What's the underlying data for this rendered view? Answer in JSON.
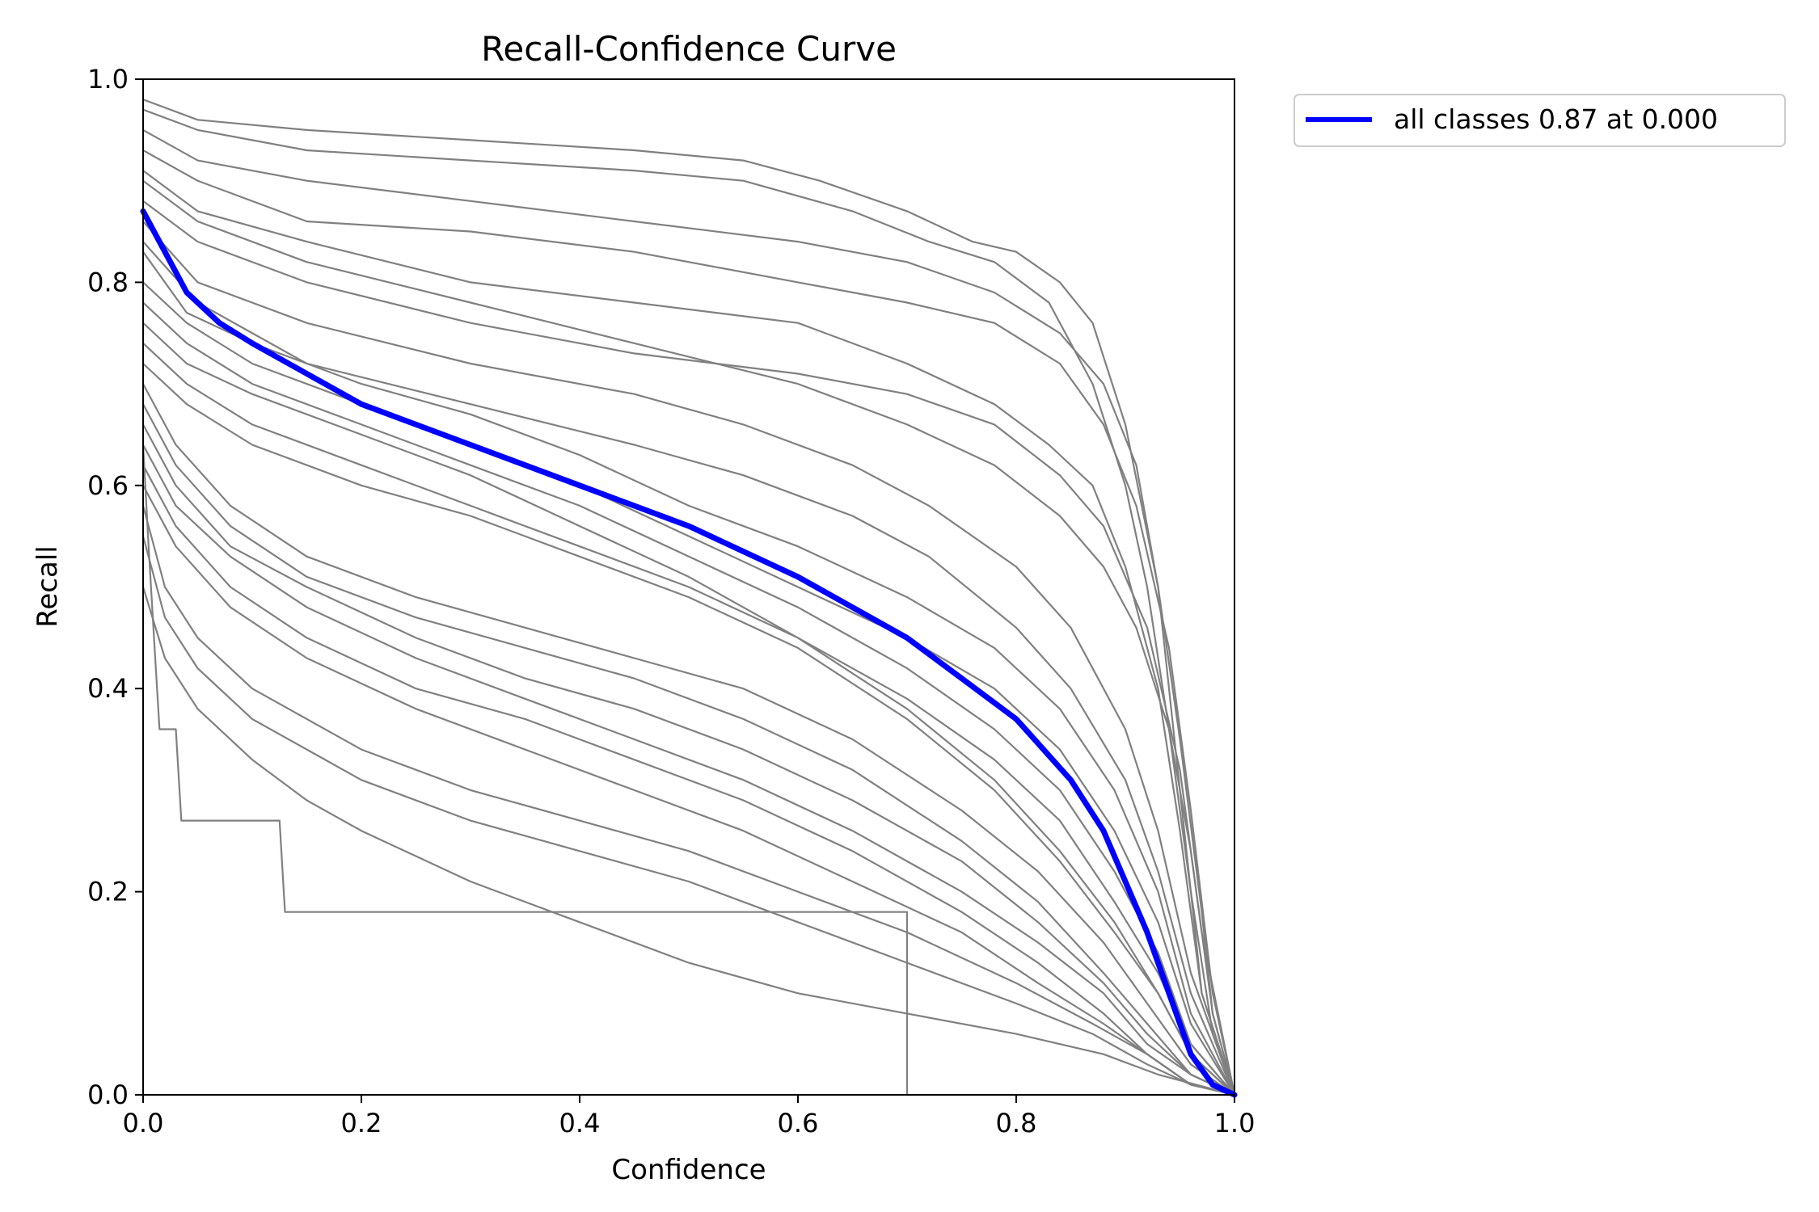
{
  "chart_data": {
    "type": "line",
    "title": "Recall-Confidence Curve",
    "xlabel": "Confidence",
    "ylabel": "Recall",
    "xlim": [
      0.0,
      1.0
    ],
    "ylim": [
      0.0,
      1.0
    ],
    "grid": false,
    "legend_placement": "outside-top-right",
    "x_ticks": [
      "0.0",
      "0.2",
      "0.4",
      "0.6",
      "0.8",
      "1.0"
    ],
    "y_ticks": [
      "0.0",
      "0.2",
      "0.4",
      "0.6",
      "0.8",
      "1.0"
    ],
    "colors": {
      "class_curves": "#808080",
      "all_classes": "#0000ff"
    },
    "class_curves": [
      {
        "x": [
          0.0,
          0.05,
          0.15,
          0.3,
          0.45,
          0.55,
          0.62,
          0.7,
          0.76,
          0.8,
          0.84,
          0.87,
          0.9,
          0.93,
          0.95,
          0.97,
          1.0
        ],
        "y": [
          0.98,
          0.96,
          0.95,
          0.94,
          0.93,
          0.92,
          0.9,
          0.87,
          0.84,
          0.83,
          0.8,
          0.76,
          0.66,
          0.5,
          0.3,
          0.1,
          0.0
        ]
      },
      {
        "x": [
          0.0,
          0.05,
          0.15,
          0.3,
          0.45,
          0.55,
          0.65,
          0.72,
          0.78,
          0.83,
          0.87,
          0.9,
          0.92,
          0.94,
          0.96,
          0.98,
          1.0
        ],
        "y": [
          0.97,
          0.95,
          0.93,
          0.92,
          0.91,
          0.9,
          0.87,
          0.84,
          0.82,
          0.78,
          0.7,
          0.6,
          0.5,
          0.36,
          0.2,
          0.06,
          0.0
        ]
      },
      {
        "x": [
          0.0,
          0.05,
          0.15,
          0.3,
          0.45,
          0.6,
          0.7,
          0.78,
          0.84,
          0.88,
          0.91,
          0.93,
          0.95,
          0.97,
          0.98,
          1.0
        ],
        "y": [
          0.95,
          0.92,
          0.9,
          0.88,
          0.86,
          0.84,
          0.82,
          0.79,
          0.75,
          0.7,
          0.62,
          0.5,
          0.35,
          0.18,
          0.08,
          0.0
        ]
      },
      {
        "x": [
          0.0,
          0.05,
          0.15,
          0.3,
          0.45,
          0.6,
          0.7,
          0.78,
          0.84,
          0.88,
          0.91,
          0.94,
          0.96,
          0.98,
          1.0
        ],
        "y": [
          0.93,
          0.9,
          0.86,
          0.85,
          0.83,
          0.8,
          0.78,
          0.76,
          0.72,
          0.66,
          0.58,
          0.44,
          0.28,
          0.1,
          0.0
        ]
      },
      {
        "x": [
          0.0,
          0.05,
          0.15,
          0.3,
          0.45,
          0.6,
          0.7,
          0.78,
          0.83,
          0.87,
          0.9,
          0.93,
          0.95,
          0.97,
          1.0
        ],
        "y": [
          0.91,
          0.87,
          0.84,
          0.8,
          0.78,
          0.76,
          0.72,
          0.68,
          0.64,
          0.6,
          0.52,
          0.4,
          0.26,
          0.1,
          0.0
        ]
      },
      {
        "x": [
          0.0,
          0.05,
          0.15,
          0.3,
          0.45,
          0.6,
          0.7,
          0.78,
          0.84,
          0.88,
          0.91,
          0.94,
          0.96,
          0.98,
          1.0
        ],
        "y": [
          0.9,
          0.86,
          0.82,
          0.78,
          0.74,
          0.7,
          0.66,
          0.62,
          0.57,
          0.52,
          0.46,
          0.36,
          0.24,
          0.08,
          0.0
        ]
      },
      {
        "x": [
          0.0,
          0.05,
          0.15,
          0.3,
          0.45,
          0.6,
          0.7,
          0.78,
          0.84,
          0.88,
          0.92,
          0.95,
          0.97,
          1.0
        ],
        "y": [
          0.88,
          0.84,
          0.8,
          0.76,
          0.73,
          0.71,
          0.69,
          0.66,
          0.61,
          0.56,
          0.46,
          0.32,
          0.16,
          0.0
        ]
      },
      {
        "x": [
          0.0,
          0.05,
          0.15,
          0.3,
          0.45,
          0.55,
          0.65,
          0.72,
          0.8,
          0.85,
          0.9,
          0.93,
          0.96,
          1.0
        ],
        "y": [
          0.86,
          0.8,
          0.76,
          0.72,
          0.69,
          0.66,
          0.62,
          0.58,
          0.52,
          0.46,
          0.36,
          0.26,
          0.12,
          0.0
        ]
      },
      {
        "x": [
          0.0,
          0.05,
          0.15,
          0.3,
          0.45,
          0.55,
          0.65,
          0.72,
          0.8,
          0.85,
          0.9,
          0.93,
          0.96,
          1.0
        ],
        "y": [
          0.84,
          0.78,
          0.72,
          0.68,
          0.64,
          0.61,
          0.57,
          0.53,
          0.46,
          0.4,
          0.31,
          0.22,
          0.1,
          0.0
        ]
      },
      {
        "x": [
          0.0,
          0.04,
          0.1,
          0.2,
          0.3,
          0.4,
          0.5,
          0.6,
          0.7,
          0.78,
          0.84,
          0.89,
          0.93,
          0.96,
          1.0
        ],
        "y": [
          0.83,
          0.77,
          0.74,
          0.7,
          0.67,
          0.63,
          0.58,
          0.54,
          0.49,
          0.44,
          0.38,
          0.3,
          0.2,
          0.08,
          0.0
        ]
      },
      {
        "x": [
          0.0,
          0.04,
          0.1,
          0.2,
          0.3,
          0.4,
          0.5,
          0.6,
          0.7,
          0.78,
          0.84,
          0.89,
          0.93,
          0.96,
          1.0
        ],
        "y": [
          0.8,
          0.76,
          0.72,
          0.68,
          0.64,
          0.6,
          0.55,
          0.5,
          0.45,
          0.4,
          0.34,
          0.26,
          0.17,
          0.07,
          0.0
        ]
      },
      {
        "x": [
          0.0,
          0.04,
          0.1,
          0.2,
          0.3,
          0.4,
          0.5,
          0.6,
          0.7,
          0.78,
          0.84,
          0.89,
          0.93,
          0.96,
          1.0
        ],
        "y": [
          0.78,
          0.74,
          0.7,
          0.66,
          0.62,
          0.58,
          0.53,
          0.48,
          0.42,
          0.36,
          0.3,
          0.22,
          0.14,
          0.05,
          0.0
        ]
      },
      {
        "x": [
          0.0,
          0.04,
          0.1,
          0.2,
          0.3,
          0.4,
          0.5,
          0.6,
          0.7,
          0.78,
          0.84,
          0.89,
          0.93,
          0.96,
          1.0
        ],
        "y": [
          0.76,
          0.72,
          0.69,
          0.65,
          0.61,
          0.56,
          0.51,
          0.45,
          0.39,
          0.33,
          0.27,
          0.19,
          0.12,
          0.05,
          0.0
        ]
      },
      {
        "x": [
          0.0,
          0.04,
          0.1,
          0.2,
          0.3,
          0.4,
          0.5,
          0.6,
          0.7,
          0.78,
          0.84,
          0.89,
          0.93,
          0.96,
          1.0
        ],
        "y": [
          0.74,
          0.7,
          0.66,
          0.62,
          0.58,
          0.54,
          0.5,
          0.45,
          0.38,
          0.31,
          0.24,
          0.17,
          0.1,
          0.04,
          0.0
        ]
      },
      {
        "x": [
          0.0,
          0.04,
          0.1,
          0.2,
          0.3,
          0.4,
          0.5,
          0.6,
          0.7,
          0.78,
          0.84,
          0.89,
          0.93,
          0.96,
          1.0
        ],
        "y": [
          0.72,
          0.68,
          0.64,
          0.6,
          0.57,
          0.53,
          0.49,
          0.44,
          0.37,
          0.3,
          0.23,
          0.16,
          0.1,
          0.04,
          0.0
        ]
      },
      {
        "x": [
          0.0,
          0.03,
          0.08,
          0.15,
          0.25,
          0.35,
          0.45,
          0.55,
          0.65,
          0.75,
          0.82,
          0.88,
          0.92,
          0.96,
          1.0
        ],
        "y": [
          0.7,
          0.64,
          0.58,
          0.53,
          0.49,
          0.46,
          0.43,
          0.4,
          0.35,
          0.28,
          0.22,
          0.15,
          0.09,
          0.03,
          0.0
        ]
      },
      {
        "x": [
          0.0,
          0.03,
          0.08,
          0.15,
          0.25,
          0.35,
          0.45,
          0.55,
          0.65,
          0.75,
          0.82,
          0.88,
          0.92,
          0.96,
          1.0
        ],
        "y": [
          0.68,
          0.62,
          0.56,
          0.51,
          0.47,
          0.44,
          0.41,
          0.37,
          0.32,
          0.25,
          0.19,
          0.12,
          0.07,
          0.02,
          0.0
        ]
      },
      {
        "x": [
          0.0,
          0.03,
          0.08,
          0.15,
          0.25,
          0.35,
          0.45,
          0.55,
          0.65,
          0.75,
          0.82,
          0.88,
          0.92,
          0.96,
          1.0
        ],
        "y": [
          0.66,
          0.6,
          0.54,
          0.5,
          0.45,
          0.41,
          0.38,
          0.34,
          0.29,
          0.23,
          0.17,
          0.11,
          0.06,
          0.02,
          0.0
        ]
      },
      {
        "x": [
          0.0,
          0.03,
          0.08,
          0.15,
          0.25,
          0.35,
          0.45,
          0.55,
          0.65,
          0.75,
          0.82,
          0.88,
          0.92,
          0.96,
          1.0
        ],
        "y": [
          0.64,
          0.58,
          0.53,
          0.48,
          0.43,
          0.39,
          0.35,
          0.31,
          0.26,
          0.2,
          0.15,
          0.1,
          0.05,
          0.02,
          0.0
        ]
      },
      {
        "x": [
          0.0,
          0.03,
          0.08,
          0.15,
          0.25,
          0.35,
          0.45,
          0.55,
          0.65,
          0.75,
          0.82,
          0.88,
          0.92,
          0.96,
          1.0
        ],
        "y": [
          0.62,
          0.56,
          0.5,
          0.45,
          0.4,
          0.37,
          0.33,
          0.29,
          0.24,
          0.18,
          0.13,
          0.08,
          0.04,
          0.01,
          0.0
        ]
      },
      {
        "x": [
          0.0,
          0.03,
          0.08,
          0.15,
          0.25,
          0.35,
          0.45,
          0.55,
          0.65,
          0.75,
          0.82,
          0.88,
          0.92,
          0.96,
          1.0
        ],
        "y": [
          0.6,
          0.54,
          0.48,
          0.43,
          0.38,
          0.34,
          0.3,
          0.26,
          0.21,
          0.16,
          0.11,
          0.07,
          0.04,
          0.01,
          0.0
        ]
      },
      {
        "x": [
          0.0,
          0.02,
          0.05,
          0.1,
          0.2,
          0.3,
          0.4,
          0.5,
          0.6,
          0.7,
          0.8,
          0.87,
          0.92,
          0.96,
          1.0
        ],
        "y": [
          0.58,
          0.5,
          0.45,
          0.4,
          0.34,
          0.3,
          0.27,
          0.24,
          0.2,
          0.16,
          0.11,
          0.07,
          0.04,
          0.01,
          0.0
        ]
      },
      {
        "x": [
          0.0,
          0.02,
          0.05,
          0.1,
          0.2,
          0.3,
          0.4,
          0.5,
          0.6,
          0.7,
          0.8,
          0.87,
          0.92,
          0.96,
          1.0
        ],
        "y": [
          0.55,
          0.47,
          0.42,
          0.37,
          0.31,
          0.27,
          0.24,
          0.21,
          0.17,
          0.13,
          0.09,
          0.06,
          0.03,
          0.01,
          0.0
        ]
      },
      {
        "x": [
          0.0,
          0.02,
          0.05,
          0.1,
          0.15,
          0.2,
          0.3,
          0.4,
          0.5,
          0.6,
          0.7,
          0.8,
          0.88,
          0.93,
          1.0
        ],
        "y": [
          0.5,
          0.43,
          0.38,
          0.33,
          0.29,
          0.26,
          0.21,
          0.17,
          0.13,
          0.1,
          0.08,
          0.06,
          0.04,
          0.02,
          0.0
        ]
      },
      {
        "x": [
          0.0,
          0.005,
          0.01,
          0.015,
          0.03,
          0.035,
          0.125,
          0.13,
          0.7,
          0.7,
          1.0
        ],
        "y": [
          0.64,
          0.54,
          0.45,
          0.36,
          0.36,
          0.27,
          0.27,
          0.18,
          0.18,
          0.0,
          0.0
        ]
      }
    ],
    "series": [
      {
        "name": "all classes 0.87 at 0.000",
        "x": [
          0.0,
          0.02,
          0.04,
          0.07,
          0.1,
          0.15,
          0.2,
          0.3,
          0.4,
          0.5,
          0.6,
          0.7,
          0.75,
          0.8,
          0.85,
          0.88,
          0.9,
          0.92,
          0.94,
          0.96,
          0.98,
          1.0
        ],
        "y": [
          0.87,
          0.83,
          0.79,
          0.76,
          0.74,
          0.71,
          0.68,
          0.64,
          0.6,
          0.56,
          0.51,
          0.45,
          0.41,
          0.37,
          0.31,
          0.26,
          0.21,
          0.16,
          0.1,
          0.04,
          0.01,
          0.0
        ]
      }
    ]
  }
}
